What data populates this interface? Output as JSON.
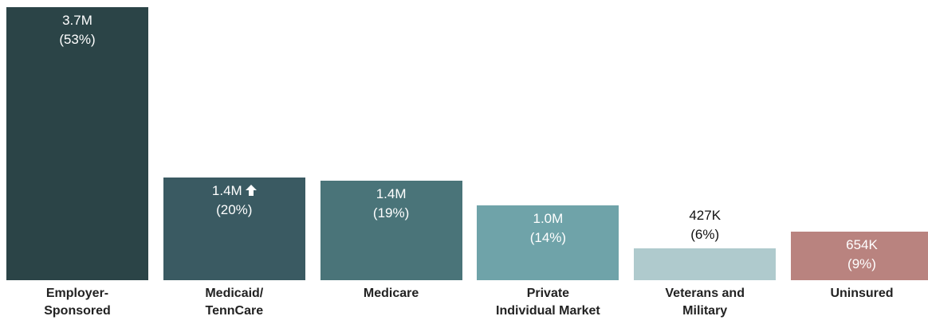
{
  "chart_data": {
    "type": "bar",
    "categories": [
      "Employer-\nSponsored",
      "Medicaid/\nTennCare",
      "Medicare",
      "Private\nIndividual Market",
      "Veterans and\nMilitary",
      "Uninsured"
    ],
    "values": [
      3700000,
      1390000,
      1350000,
      1010000,
      427000,
      654000
    ],
    "value_labels": [
      "3.7M",
      "1.4M",
      "1.4M",
      "1.0M",
      "427K",
      "654K"
    ],
    "percents": [
      53,
      20,
      19,
      14,
      6,
      9
    ],
    "percent_labels": [
      "(53%)",
      "(20%)",
      "(19%)",
      "(14%)",
      "(6%)",
      "(9%)"
    ],
    "colors": [
      "#2b4447",
      "#3a5a62",
      "#4a7479",
      "#6fa3a9",
      "#afcacd",
      "#b9837f"
    ]
  }
}
